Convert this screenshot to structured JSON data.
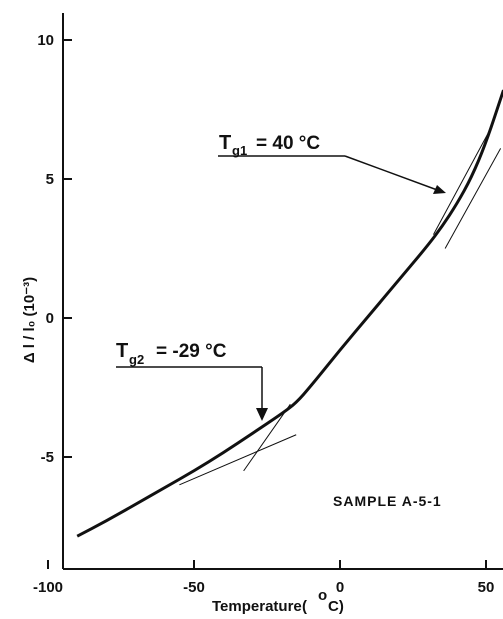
{
  "chart_data": {
    "type": "line",
    "xlabel": "Temperature",
    "xlabel_unit_open": "(",
    "xlabel_unit_deg": "o",
    "xlabel_unit_c": "C)",
    "ylabel": "Δ l / l₀ (10⁻³)",
    "xlim": [
      -100,
      55
    ],
    "ylim": [
      -9,
      11
    ],
    "xticks": [
      {
        "value": -100,
        "label": "-100"
      },
      {
        "value": -50,
        "label": "-50"
      },
      {
        "value": 0,
        "label": "0"
      },
      {
        "value": 50,
        "label": "50"
      }
    ],
    "yticks": [
      {
        "value": 10,
        "label": "10"
      },
      {
        "value": 5,
        "label": "5"
      },
      {
        "value": 0,
        "label": "0"
      },
      {
        "value": -5,
        "label": "-5"
      }
    ],
    "series": [
      {
        "x": [
          -90,
          -80,
          -70,
          -60,
          -50,
          -40,
          -30,
          -20,
          -15,
          -10,
          0,
          10,
          20,
          30,
          35,
          40,
          45,
          50,
          56
        ],
        "y": [
          -7.85,
          -7.3,
          -6.7,
          -6.1,
          -5.5,
          -4.85,
          -4.15,
          -3.45,
          -3.05,
          -2.45,
          -1.15,
          0.1,
          1.35,
          2.6,
          3.3,
          4.1,
          5.05,
          6.3,
          8.2
        ]
      }
    ],
    "tangent_lines": [
      {
        "x": [
          -55,
          -15
        ],
        "y": [
          -6.0,
          -4.2
        ]
      },
      {
        "x": [
          -33,
          -17
        ],
        "y": [
          -5.5,
          -3.1
        ]
      },
      {
        "x": [
          36,
          55
        ],
        "y": [
          2.5,
          6.1
        ]
      },
      {
        "x": [
          32,
          51
        ],
        "y": [
          3.0,
          6.7
        ]
      }
    ],
    "annotations": [
      {
        "text_main": "T",
        "text_sub": "g1",
        "text_value": "= 40 °C"
      },
      {
        "text_main": "T",
        "text_sub": "g2",
        "text_value": "= -29 °C"
      },
      {
        "text": "SAMPLE A-5-1"
      }
    ],
    "grid": false
  }
}
